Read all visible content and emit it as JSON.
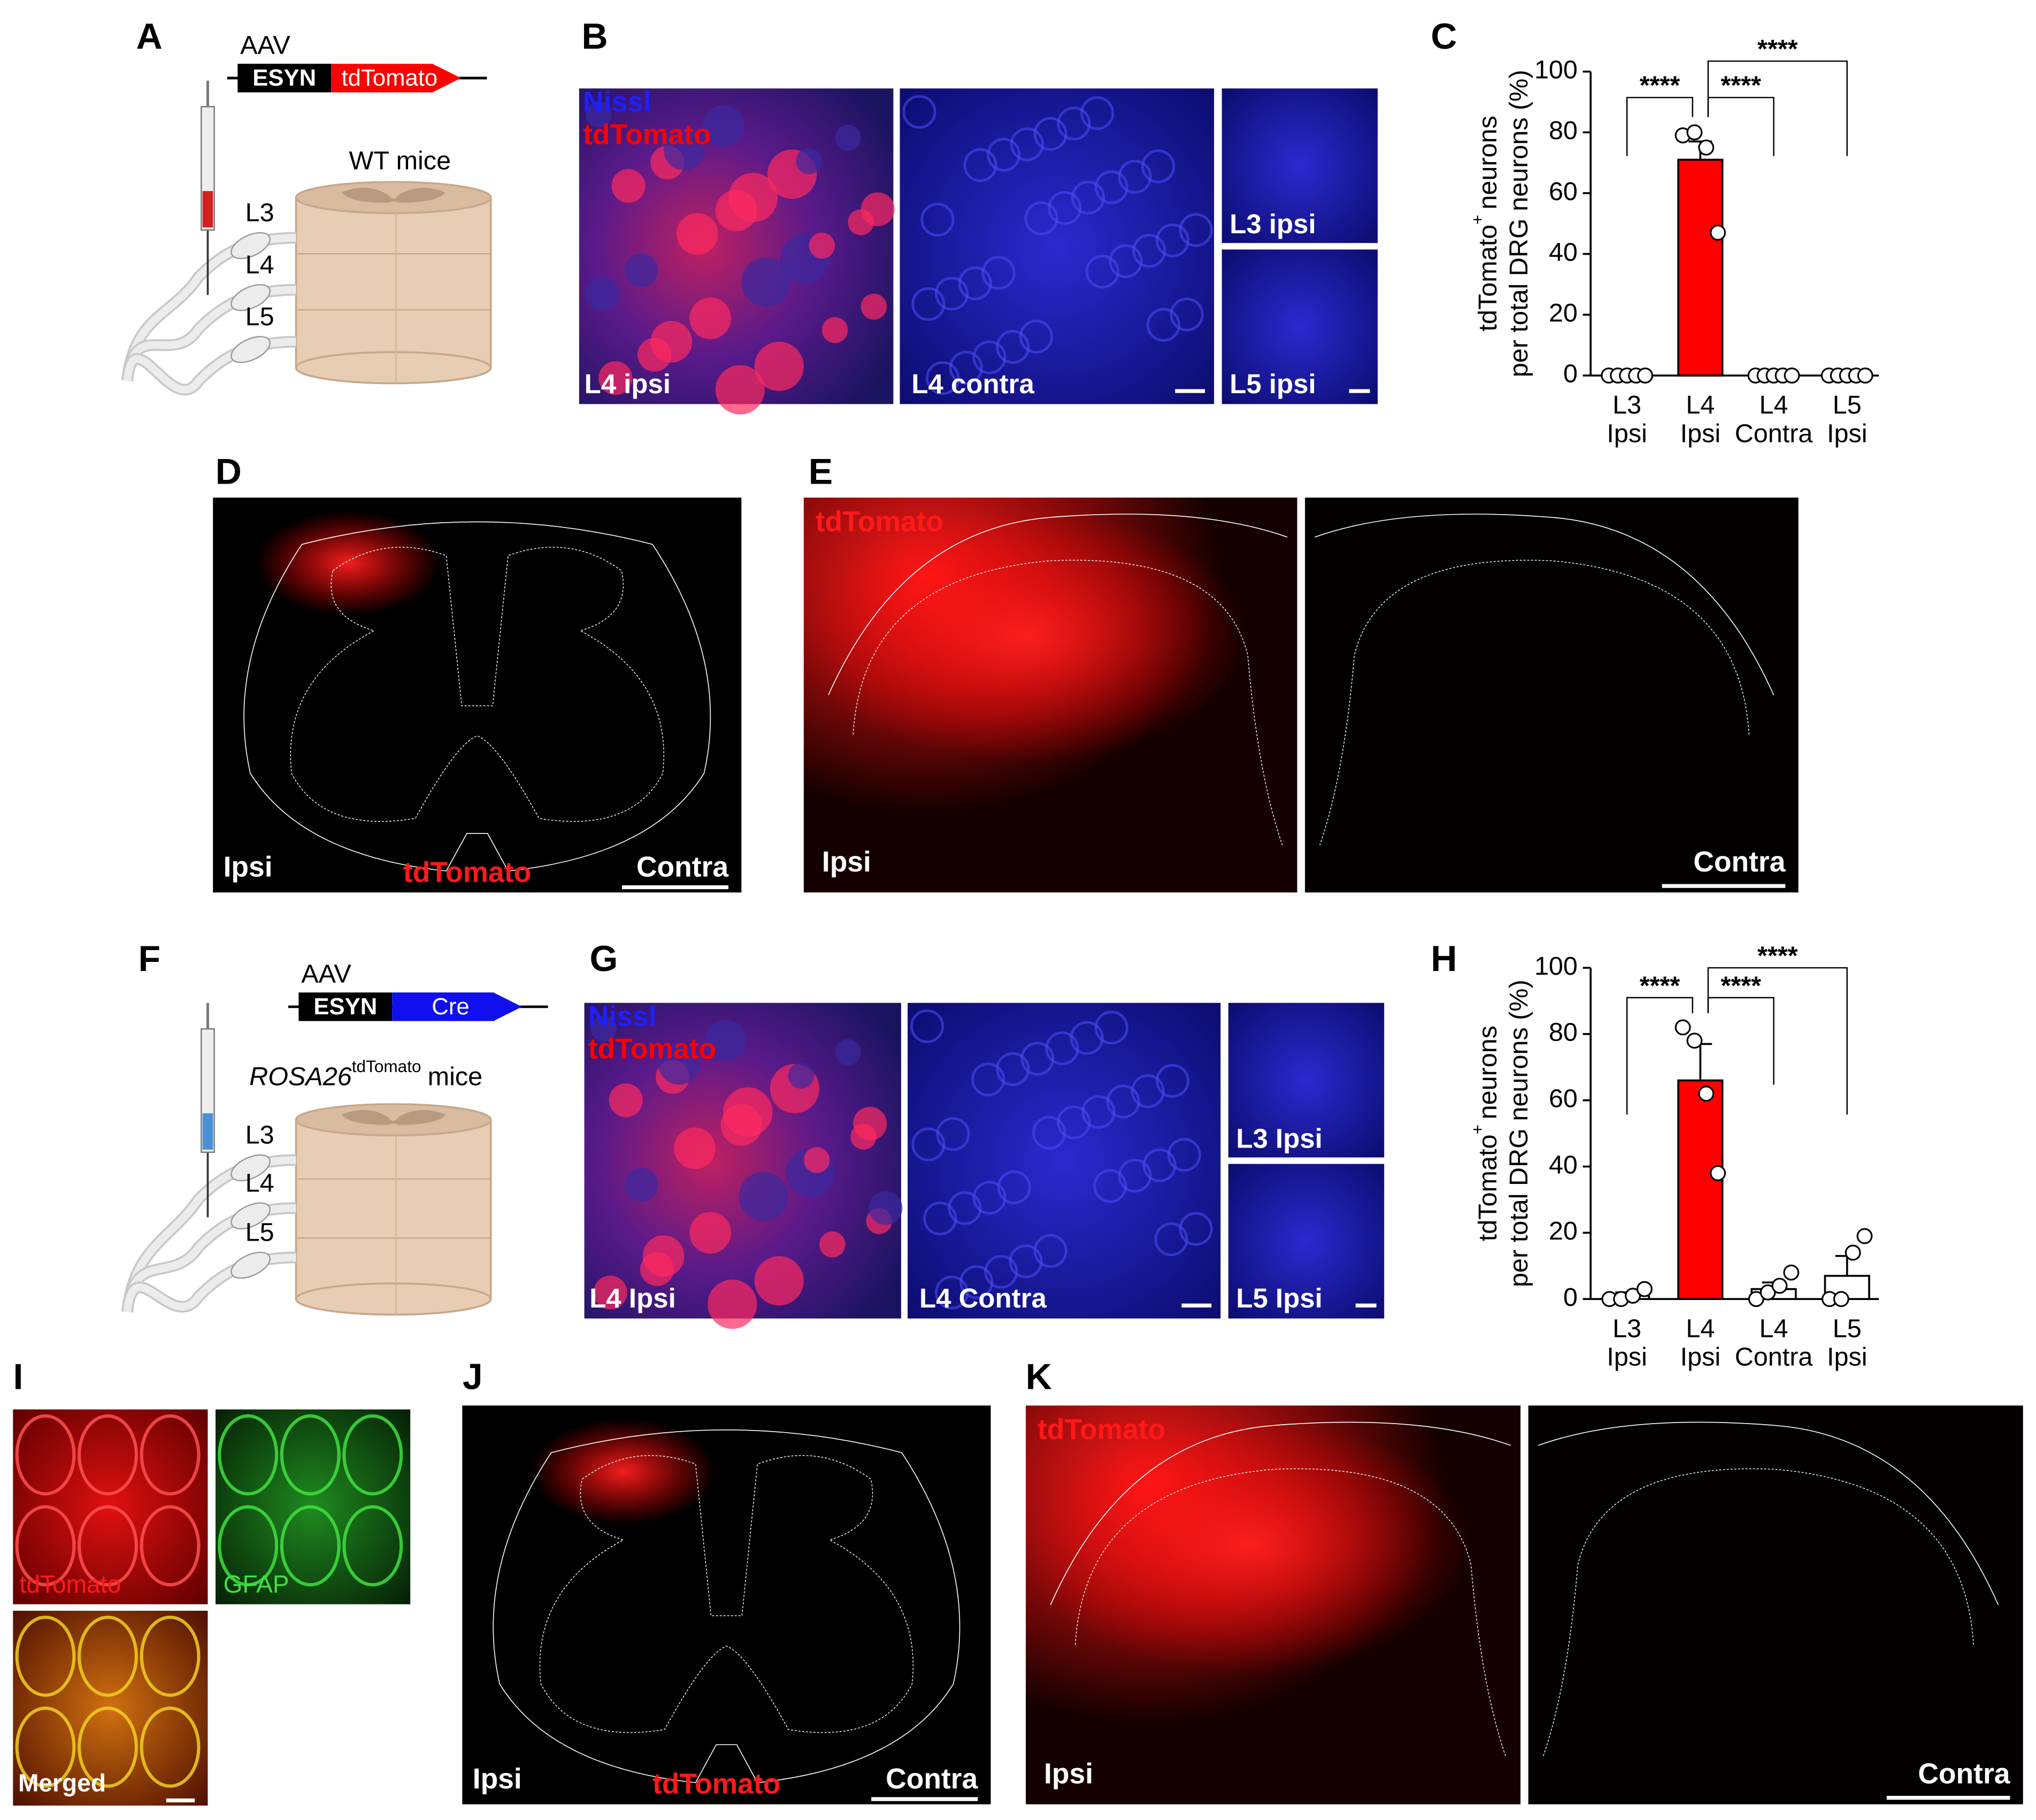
{
  "panels": {
    "A": {
      "label": "A",
      "vector": "AAV",
      "promoter": "ESYN",
      "gene": "tdTomato",
      "mice": "WT mice",
      "levels": [
        "L3",
        "L4",
        "L5"
      ]
    },
    "B": {
      "label": "B",
      "stains": [
        "Nissl",
        "tdTomato"
      ],
      "images": [
        "L4 ipsi",
        "L4 contra",
        "L3 ipsi",
        "L5 ipsi"
      ]
    },
    "C": {
      "label": "C"
    },
    "D": {
      "label": "D",
      "stain": "tdTomato",
      "sides": [
        "Ipsi",
        "Contra"
      ]
    },
    "E": {
      "label": "E",
      "stain": "tdTomato",
      "sides": [
        "Ipsi",
        "Contra"
      ]
    },
    "F": {
      "label": "F",
      "vector": "AAV",
      "promoter": "ESYN",
      "gene": "Cre",
      "mice_line": "ROSA26",
      "mice_sup": "tdTomato",
      "mice": "mice",
      "levels": [
        "L3",
        "L4",
        "L5"
      ]
    },
    "G": {
      "label": "G",
      "stains": [
        "Nissl",
        "tdTomato"
      ],
      "images": [
        "L4 Ipsi",
        "L4 Contra",
        "L3 Ipsi",
        "L5 Ipsi"
      ]
    },
    "H": {
      "label": "H"
    },
    "I": {
      "label": "I",
      "images": [
        "tdTomato",
        "GFAP",
        "Merged"
      ]
    },
    "J": {
      "label": "J",
      "stain": "tdTomato",
      "sides": [
        "Ipsi",
        "Contra"
      ]
    },
    "K": {
      "label": "K",
      "stain": "tdTomato",
      "sides": [
        "Ipsi",
        "Contra"
      ]
    }
  },
  "chart_data": [
    {
      "type": "bar",
      "categories": [
        [
          "L3",
          "Ipsi"
        ],
        [
          "L4",
          "Ipsi"
        ],
        [
          "L4",
          "Contra"
        ],
        [
          "L5",
          "Ipsi"
        ]
      ],
      "values": [
        0,
        71,
        0,
        0
      ],
      "errors": [
        0,
        6,
        0,
        0
      ],
      "points": [
        [
          0,
          0,
          0,
          0,
          0
        ],
        [
          79,
          80,
          75,
          47
        ],
        [
          0,
          0,
          0,
          0,
          0
        ],
        [
          0,
          0,
          0,
          0,
          0
        ]
      ],
      "colors": [
        "#ffffff",
        "#ff0000",
        "#ffffff",
        "#ffffff"
      ],
      "ylim": [
        0,
        100
      ],
      "yticks": [
        0,
        20,
        40,
        60,
        80,
        100
      ],
      "ylabel": {
        "main": "tdTomato",
        "sup": "+",
        "rest": "neurons",
        "line2": "per total DRG neurons (%)"
      },
      "annotations": [
        "****",
        "****",
        "****"
      ]
    },
    {
      "type": "bar",
      "categories": [
        [
          "L3",
          "Ipsi"
        ],
        [
          "L4",
          "Ipsi"
        ],
        [
          "L4",
          "Contra"
        ],
        [
          "L5",
          "Ipsi"
        ]
      ],
      "values": [
        1,
        66,
        3,
        7
      ],
      "errors": [
        1,
        11,
        2,
        6
      ],
      "points": [
        [
          0,
          0,
          1,
          3
        ],
        [
          82,
          78,
          62,
          38
        ],
        [
          0,
          2,
          4,
          8
        ],
        [
          0,
          0,
          14,
          19
        ]
      ],
      "colors": [
        "#ffffff",
        "#ff0000",
        "#ffffff",
        "#ffffff"
      ],
      "ylim": [
        0,
        100
      ],
      "yticks": [
        0,
        20,
        40,
        60,
        80,
        100
      ],
      "ylabel": {
        "main": "tdTomato",
        "sup": "+",
        "rest": "neurons",
        "line2": "per total DRG neurons (%)"
      },
      "annotations": [
        "****",
        "****",
        "****"
      ]
    }
  ]
}
